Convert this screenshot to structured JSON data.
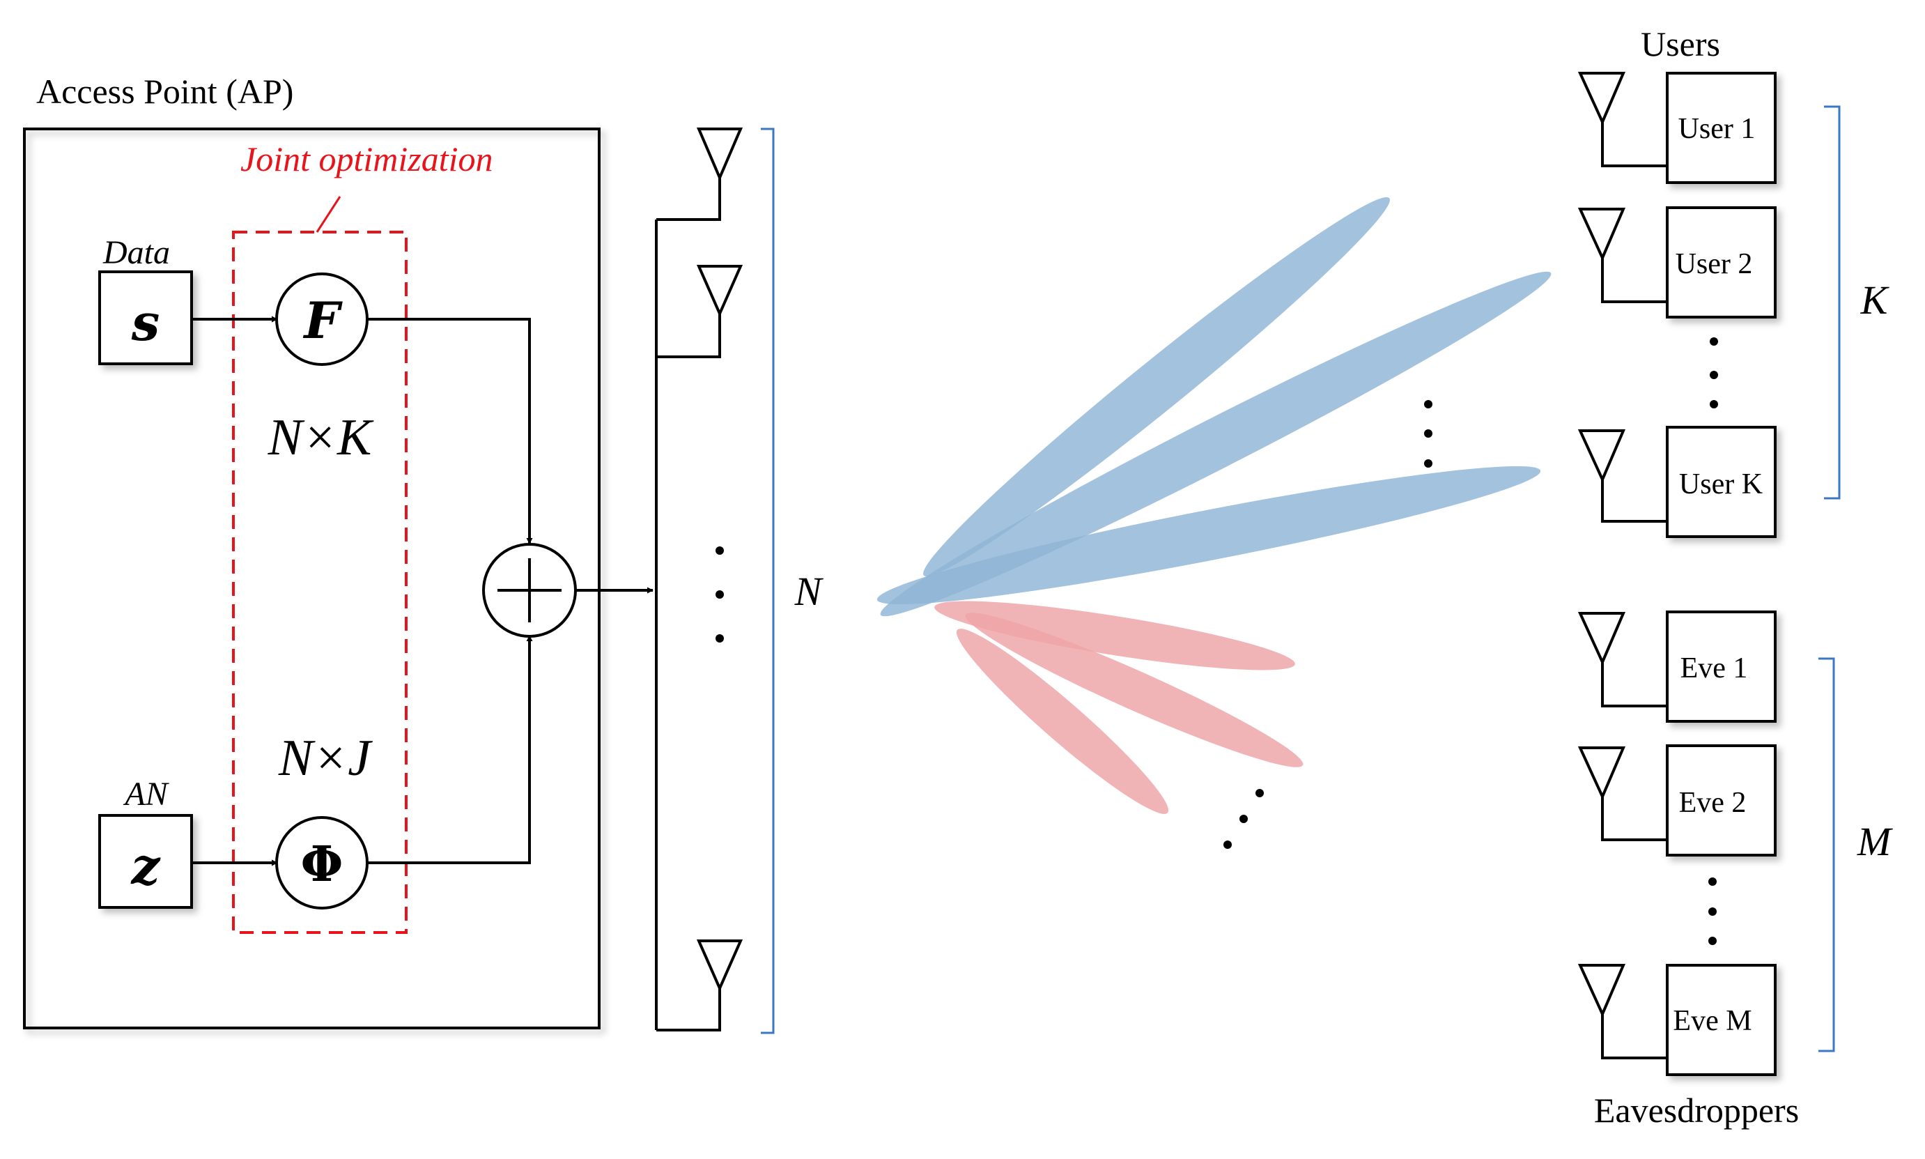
{
  "ap": {
    "title": "Access Point (AP)",
    "joint_label": "Joint optimization",
    "data_label": "Data",
    "an_label": "AN",
    "s_symbol": "s",
    "z_symbol": "z",
    "f_symbol": "F",
    "phi_symbol": "Φ",
    "nk_label": "N×K",
    "nj_label": "N×J",
    "sum_symbol": "+"
  },
  "array": {
    "n_label": "N"
  },
  "users": {
    "title": "Users",
    "items": [
      "User 1",
      "User 2",
      "User K"
    ],
    "k_label": "K"
  },
  "eves": {
    "title": "Eavesdroppers",
    "items": [
      "Eve 1",
      "Eve 2",
      "Eve M"
    ],
    "m_label": "M"
  },
  "colors": {
    "beam_user": "#8fb4d6",
    "beam_eve": "#eea3a6",
    "joint_red": "#e8141c",
    "bracket_blue": "#3b78c4"
  }
}
